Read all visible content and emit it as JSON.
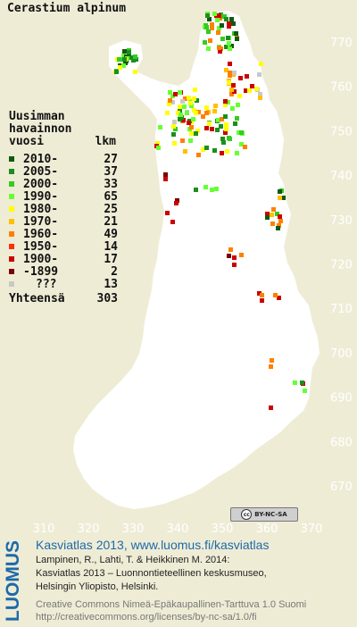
{
  "species": "Cerastium alpinum",
  "legend": {
    "heading_lines": [
      "Uusimman",
      "havainnon"
    ],
    "col_year": "vuosi",
    "col_count": "lkm",
    "items": [
      {
        "label": "2010-",
        "count": "27",
        "color": "#0f5a0f"
      },
      {
        "label": "2005-",
        "count": "37",
        "color": "#1b8f1b"
      },
      {
        "label": "2000-",
        "count": "33",
        "color": "#33cc1f"
      },
      {
        "label": "1990-",
        "count": "65",
        "color": "#66ff33"
      },
      {
        "label": "1980-",
        "count": "25",
        "color": "#ffff00"
      },
      {
        "label": "1970-",
        "count": "21",
        "color": "#ffc000"
      },
      {
        "label": "1960-",
        "count": "49",
        "color": "#ff8000"
      },
      {
        "label": "1950-",
        "count": "14",
        "color": "#ff3000"
      },
      {
        "label": "1900-",
        "count": "17",
        "color": "#cc0000"
      },
      {
        "label": "-1899",
        "count": "2",
        "color": "#7a0000"
      },
      {
        "label": "???",
        "count": "13",
        "color": "#c8c8c8"
      }
    ],
    "total_label": "Yhteensä",
    "total_count": "303"
  },
  "map": {
    "y_ticks": [
      "770",
      "760",
      "750",
      "740",
      "730",
      "720",
      "710",
      "700",
      "690",
      "680",
      "670"
    ],
    "x_ticks": [
      "310",
      "320",
      "330",
      "340",
      "350",
      "360",
      "370"
    ],
    "land_color": "#ffffff",
    "background_color": "#efecd6"
  },
  "license_badge": {
    "icon": "cc-icon",
    "text": "BY-NC-SA"
  },
  "brand": {
    "logo_text": "LUOMUS",
    "color": "#1d6aa9"
  },
  "footer": {
    "title": "Kasviatlas 2013, www.luomus.fi/kasviatlas",
    "cite_line1": "Lampinen, R., Lahti, T. & Heikkinen M. 2014:",
    "cite_line2": "Kasviatlas 2013 – Luonnontieteellinen keskusmuseo,",
    "cite_line3": "Helsingin Yliopisto, Helsinki.",
    "license_line1": "Creative Commons Nimeä-Epäkaupallinen-Tarttuva 1.0 Suomi",
    "license_line2": "http://creativecommons.org/licenses/by-nc-sa/1.0/fi"
  }
}
